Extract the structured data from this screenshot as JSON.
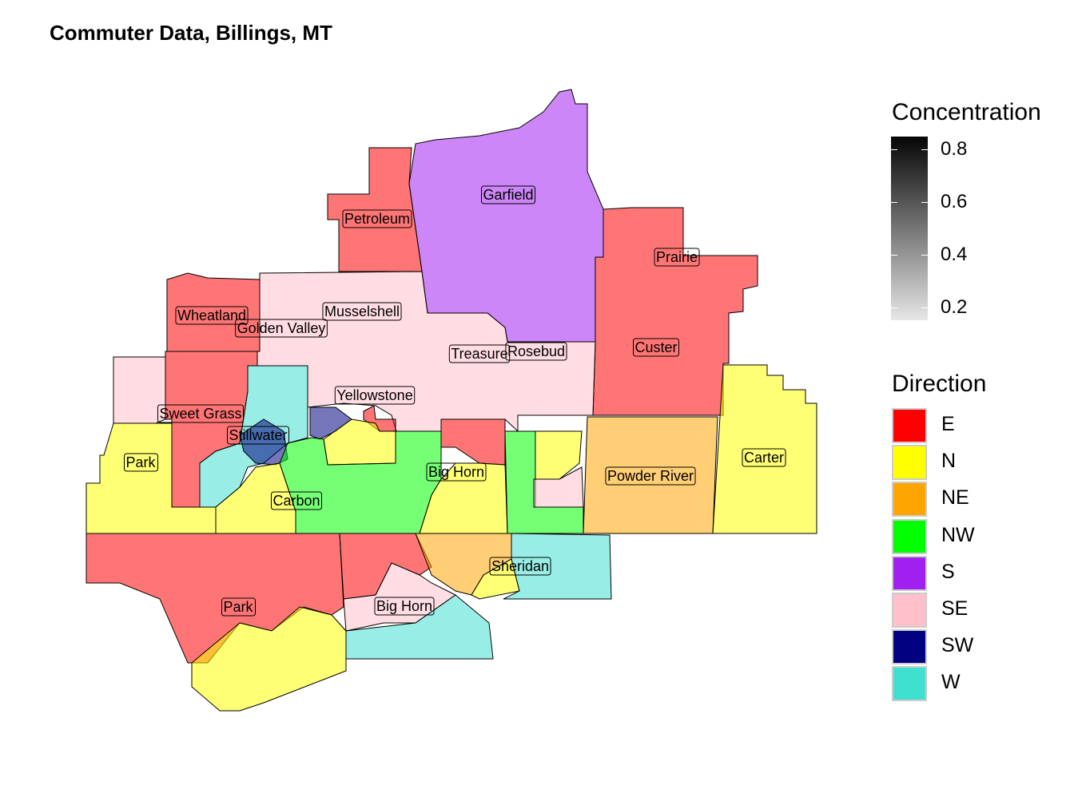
{
  "title": "Commuter Data, Billings, MT",
  "concentration_legend": {
    "title": "Concentration",
    "ticks": [
      "0.8",
      "0.6",
      "0.4",
      "0.2"
    ],
    "range": [
      0.15,
      0.85
    ],
    "gradient": [
      "#050505",
      "#e6e6e6"
    ]
  },
  "direction_legend": {
    "title": "Direction",
    "items": [
      {
        "label": "E",
        "color": "#FF0000"
      },
      {
        "label": "N",
        "color": "#FFFF00"
      },
      {
        "label": "NE",
        "color": "#FFA500"
      },
      {
        "label": "NW",
        "color": "#00FF00"
      },
      {
        "label": "S",
        "color": "#A020F0"
      },
      {
        "label": "SE",
        "color": "#FFC0CB"
      },
      {
        "label": "SW",
        "color": "#000080"
      },
      {
        "label": "W",
        "color": "#40E0D0"
      }
    ]
  },
  "counties": [
    {
      "name": "Garfield",
      "direction": "S"
    },
    {
      "name": "Petroleum",
      "direction": "E"
    },
    {
      "name": "Prairie",
      "direction": "E"
    },
    {
      "name": "Wheatland",
      "direction": "E"
    },
    {
      "name": "Musselshell",
      "direction": "SE"
    },
    {
      "name": "Golden Valley",
      "direction": "SE"
    },
    {
      "name": "Custer",
      "direction": "E"
    },
    {
      "name": "Treasure",
      "direction": "SE"
    },
    {
      "name": "Rosebud",
      "direction": "SE"
    },
    {
      "name": "Yellowstone",
      "direction": "SE"
    },
    {
      "name": "Sweet Grass",
      "direction": "E"
    },
    {
      "name": "Stillwater",
      "direction": "W"
    },
    {
      "name": "Park",
      "direction": "N"
    },
    {
      "name": "Big Horn",
      "direction": "E"
    },
    {
      "name": "Carter",
      "direction": "N"
    },
    {
      "name": "Powder River",
      "direction": "NE"
    },
    {
      "name": "Carbon",
      "direction": "NW"
    },
    {
      "name": "Sheridan",
      "direction": "NE"
    },
    {
      "name": "Park",
      "direction": "E"
    },
    {
      "name": "Big Horn",
      "direction": "SE"
    }
  ]
}
